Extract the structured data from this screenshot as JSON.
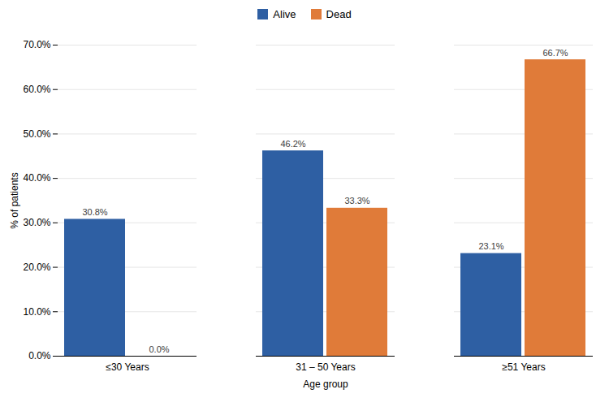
{
  "chart_data": {
    "type": "bar",
    "categories": [
      "≤30 Years",
      "31 – 50 Years",
      "≥51 Years"
    ],
    "series": [
      {
        "name": "Alive",
        "color": "#2E5FA3",
        "values": [
          30.8,
          46.2,
          23.1
        ],
        "value_labels": [
          "30.8%",
          "46.2%",
          "23.1%"
        ]
      },
      {
        "name": "Dead",
        "color": "#E07B39",
        "values": [
          0.0,
          33.3,
          66.7
        ],
        "value_labels": [
          "0.0%",
          "33.3%",
          "66.7%"
        ]
      }
    ],
    "xlabel": "Age group",
    "ylabel": "% of patients",
    "ylim": [
      0,
      70
    ],
    "yticks": [
      {
        "value": 0,
        "label": "0.0%"
      },
      {
        "value": 10,
        "label": "10.0%"
      },
      {
        "value": 20,
        "label": "20.0%"
      },
      {
        "value": 30,
        "label": "30.0%"
      },
      {
        "value": 40,
        "label": "40.0%"
      },
      {
        "value": 50,
        "label": "50.0%"
      },
      {
        "value": 60,
        "label": "60.0%"
      },
      {
        "value": 70,
        "label": "70.0%"
      }
    ],
    "grid": true,
    "legend": "top",
    "data_labels": true
  }
}
